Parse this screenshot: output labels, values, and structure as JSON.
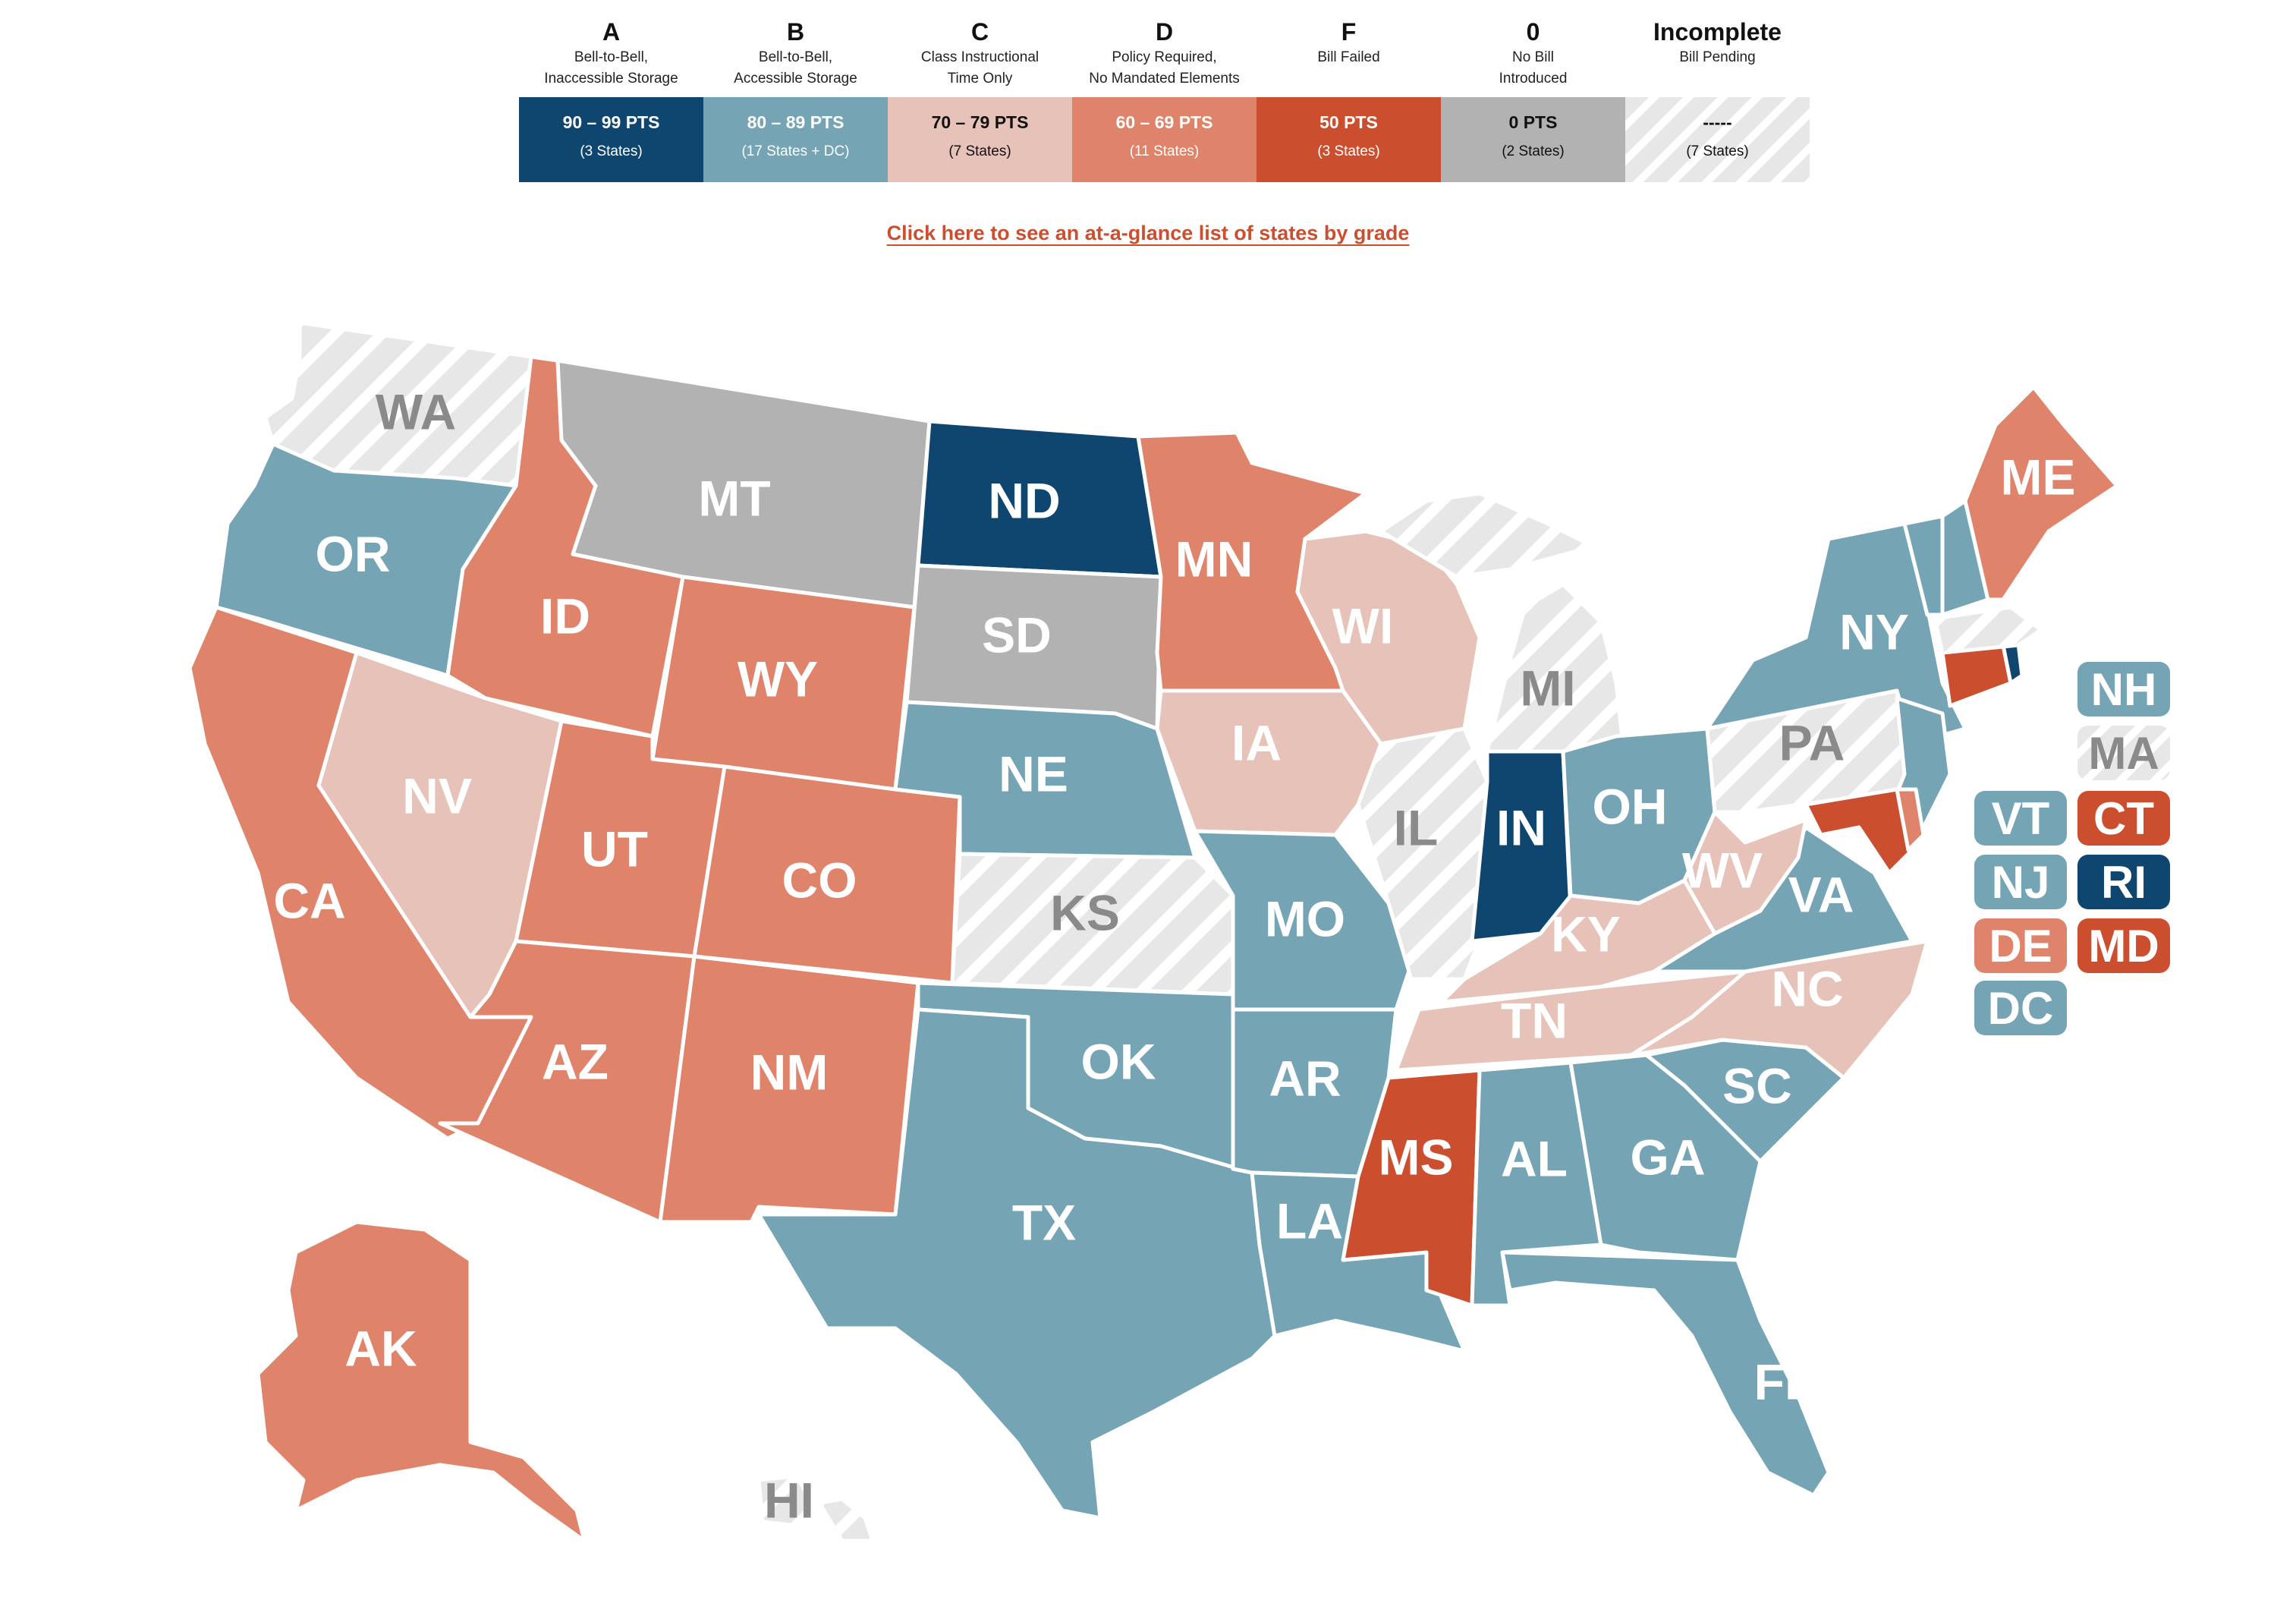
{
  "legend": [
    {
      "grade": "A",
      "desc_lines": [
        "Bell-to-Bell,",
        "Inaccessible Storage"
      ],
      "points": "90 – 99 PTS",
      "count": "(3 States)",
      "color": "#0e4670",
      "text_color": "#ffffff",
      "hatched": false
    },
    {
      "grade": "B",
      "desc_lines": [
        "Bell-to-Bell,",
        "Accessible Storage"
      ],
      "points": "80 – 89 PTS",
      "count": "(17 States + DC)",
      "color": "#75a4b4",
      "text_color": "#ffffff",
      "hatched": false
    },
    {
      "grade": "C",
      "desc_lines": [
        "Class Instructional",
        "Time Only"
      ],
      "points": "70 – 79 PTS",
      "count": "(7 States)",
      "color": "#e6c2b8",
      "text_color": "#111111",
      "hatched": false
    },
    {
      "grade": "D",
      "desc_lines": [
        "Policy Required,",
        "No Mandated Elements"
      ],
      "points": "60 – 69 PTS",
      "count": "(11 States)",
      "color": "#e0836b",
      "text_color": "#ffffff",
      "hatched": false
    },
    {
      "grade": "F",
      "desc_lines": [
        "Bill Failed"
      ],
      "points": "50 PTS",
      "count": "(3 States)",
      "color": "#cb4f2f",
      "text_color": "#ffffff",
      "hatched": false
    },
    {
      "grade": "0",
      "desc_lines": [
        "No Bill",
        "Introduced"
      ],
      "points": "0 PTS",
      "count": "(2 States)",
      "color": "#b2b2b2",
      "text_color": "#111111",
      "hatched": false
    },
    {
      "grade": "Incomplete",
      "desc_lines": [
        "Bill Pending"
      ],
      "points": "-----",
      "count": "(7 States)",
      "color": "#e7e7e7",
      "text_color": "#111111",
      "hatched": true
    }
  ],
  "link_text": "Click here to see an at-a-glance list of states by grade",
  "grade_colors": {
    "A": "#0e4670",
    "B": "#75a4b4",
    "C": "#e6c2b8",
    "D": "#e0836b",
    "F": "#cb4f2f",
    "0": "#b2b2b2",
    "Incomplete": "#e7e7e7"
  },
  "label_colors": {
    "A": "#ffffff",
    "B": "#ffffff",
    "C": "#ffffff",
    "D": "#ffffff",
    "F": "#ffffff",
    "0": "#ffffff",
    "Incomplete": "#8a8a8a"
  },
  "states": {
    "WA": "Incomplete",
    "OR": "B",
    "CA": "D",
    "ID": "D",
    "NV": "C",
    "MT": "0",
    "WY": "D",
    "UT": "D",
    "AZ": "D",
    "CO": "D",
    "NM": "D",
    "ND": "A",
    "SD": "0",
    "NE": "B",
    "KS": "Incomplete",
    "OK": "B",
    "TX": "B",
    "MN": "D",
    "IA": "C",
    "MO": "B",
    "AR": "B",
    "LA": "B",
    "WI": "C",
    "IL": "Incomplete",
    "MI": "Incomplete",
    "IN": "A",
    "OH": "B",
    "KY": "C",
    "TN": "C",
    "MS": "F",
    "AL": "B",
    "GA": "B",
    "FL": "B",
    "SC": "B",
    "NC": "C",
    "VA": "B",
    "WV": "C",
    "PA": "Incomplete",
    "NY": "B",
    "ME": "D",
    "AK": "D",
    "HI": "Incomplete",
    "VT": "B",
    "NH": "B",
    "MA": "Incomplete",
    "CT": "F",
    "RI": "A",
    "NJ": "B",
    "DE": "D",
    "MD": "F",
    "DC": "B"
  },
  "badges": [
    "NH",
    "MA",
    "VT",
    "CT",
    "NJ",
    "RI",
    "DE",
    "MD",
    "DC"
  ]
}
